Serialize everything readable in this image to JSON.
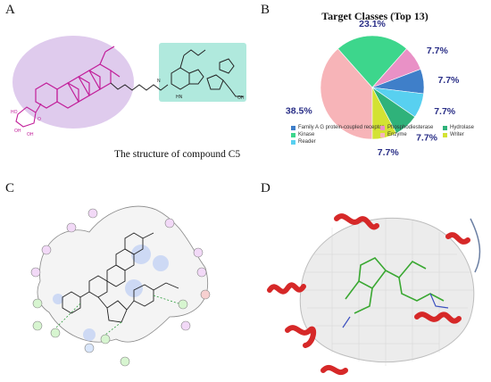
{
  "panels": {
    "a": {
      "letter": "A",
      "caption": "The structure of compound C5"
    },
    "b": {
      "letter": "B"
    },
    "c": {
      "letter": "C"
    },
    "d": {
      "letter": "D"
    }
  },
  "chart_data": {
    "type": "pie",
    "title": "Target Classes (Top 13)",
    "slices": [
      {
        "label": "Enzyme",
        "value": 38.5,
        "display": "38.5%",
        "color": "#f7b4b8"
      },
      {
        "label": "Kinase",
        "value": 23.1,
        "display": "23.1%",
        "color": "#3dd68c"
      },
      {
        "label": "Phosphodiesterase",
        "value": 7.7,
        "display": "7.7%",
        "color": "#e991c6"
      },
      {
        "label": "Family A G protein-coupled receptor",
        "value": 7.7,
        "display": "7.7%",
        "color": "#3f7fc9"
      },
      {
        "label": "Reader",
        "value": 7.7,
        "display": "7.7%",
        "color": "#58d0f0"
      },
      {
        "label": "Hydrolase",
        "value": 7.7,
        "display": "7.7%",
        "color": "#2fb27a"
      },
      {
        "label": "Writer",
        "value": 7.7,
        "display": "7.7%",
        "color": "#d3e233"
      }
    ],
    "legend": [
      {
        "label": "Family A G protein-coupled receptor",
        "color": "#3f7fc9"
      },
      {
        "label": "Phosphodiesterase",
        "color": "#e991c6"
      },
      {
        "label": "Hydrolase",
        "color": "#2fb27a"
      },
      {
        "label": "Kinase",
        "color": "#3dd68c"
      },
      {
        "label": "Enzyme",
        "color": "#f7b4b8"
      },
      {
        "label": "Writer",
        "color": "#d3e233"
      },
      {
        "label": "Reader",
        "color": "#58d0f0"
      }
    ],
    "legend_position": "bottom"
  }
}
